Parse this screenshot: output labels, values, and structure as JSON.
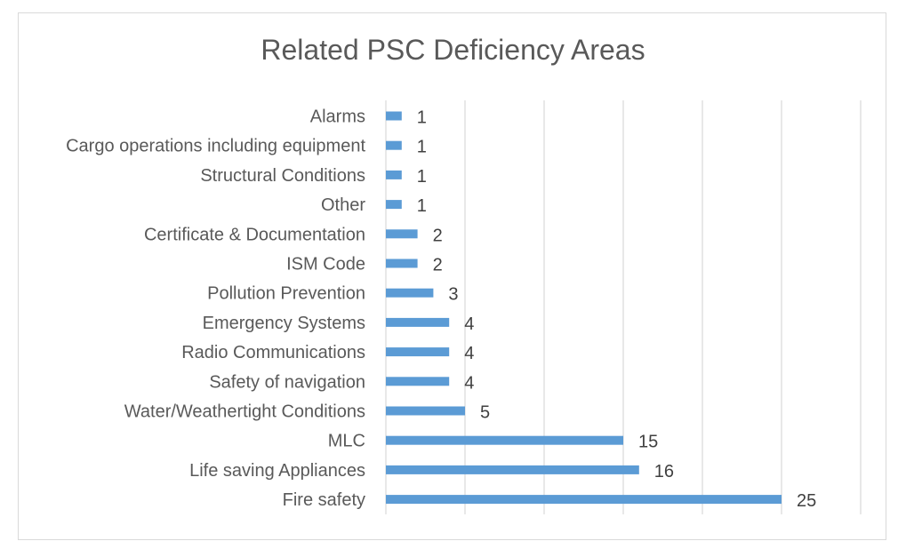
{
  "chart_data": {
    "type": "bar",
    "orientation": "horizontal",
    "title": "Related PSC Deficiency Areas",
    "categories": [
      "Alarms",
      "Cargo operations including equipment",
      "Structural Conditions",
      "Other",
      "Certificate & Documentation",
      "ISM Code",
      "Pollution Prevention",
      "Emergency Systems",
      "Radio Communications",
      "Safety of navigation",
      "Water/Weathertight Conditions",
      "MLC",
      "Life saving Appliances",
      "Fire safety"
    ],
    "values": [
      1,
      1,
      1,
      1,
      2,
      2,
      3,
      4,
      4,
      4,
      5,
      15,
      16,
      25
    ],
    "xlim": [
      0,
      30
    ],
    "major_gridlines_every": 5,
    "gridlines": true,
    "axis_tick_labels_shown": false,
    "data_labels": true,
    "bar_color": "#5b9bd5",
    "gridline_color": "#d9d9d9",
    "text_color": "#595959",
    "legend": "none"
  }
}
